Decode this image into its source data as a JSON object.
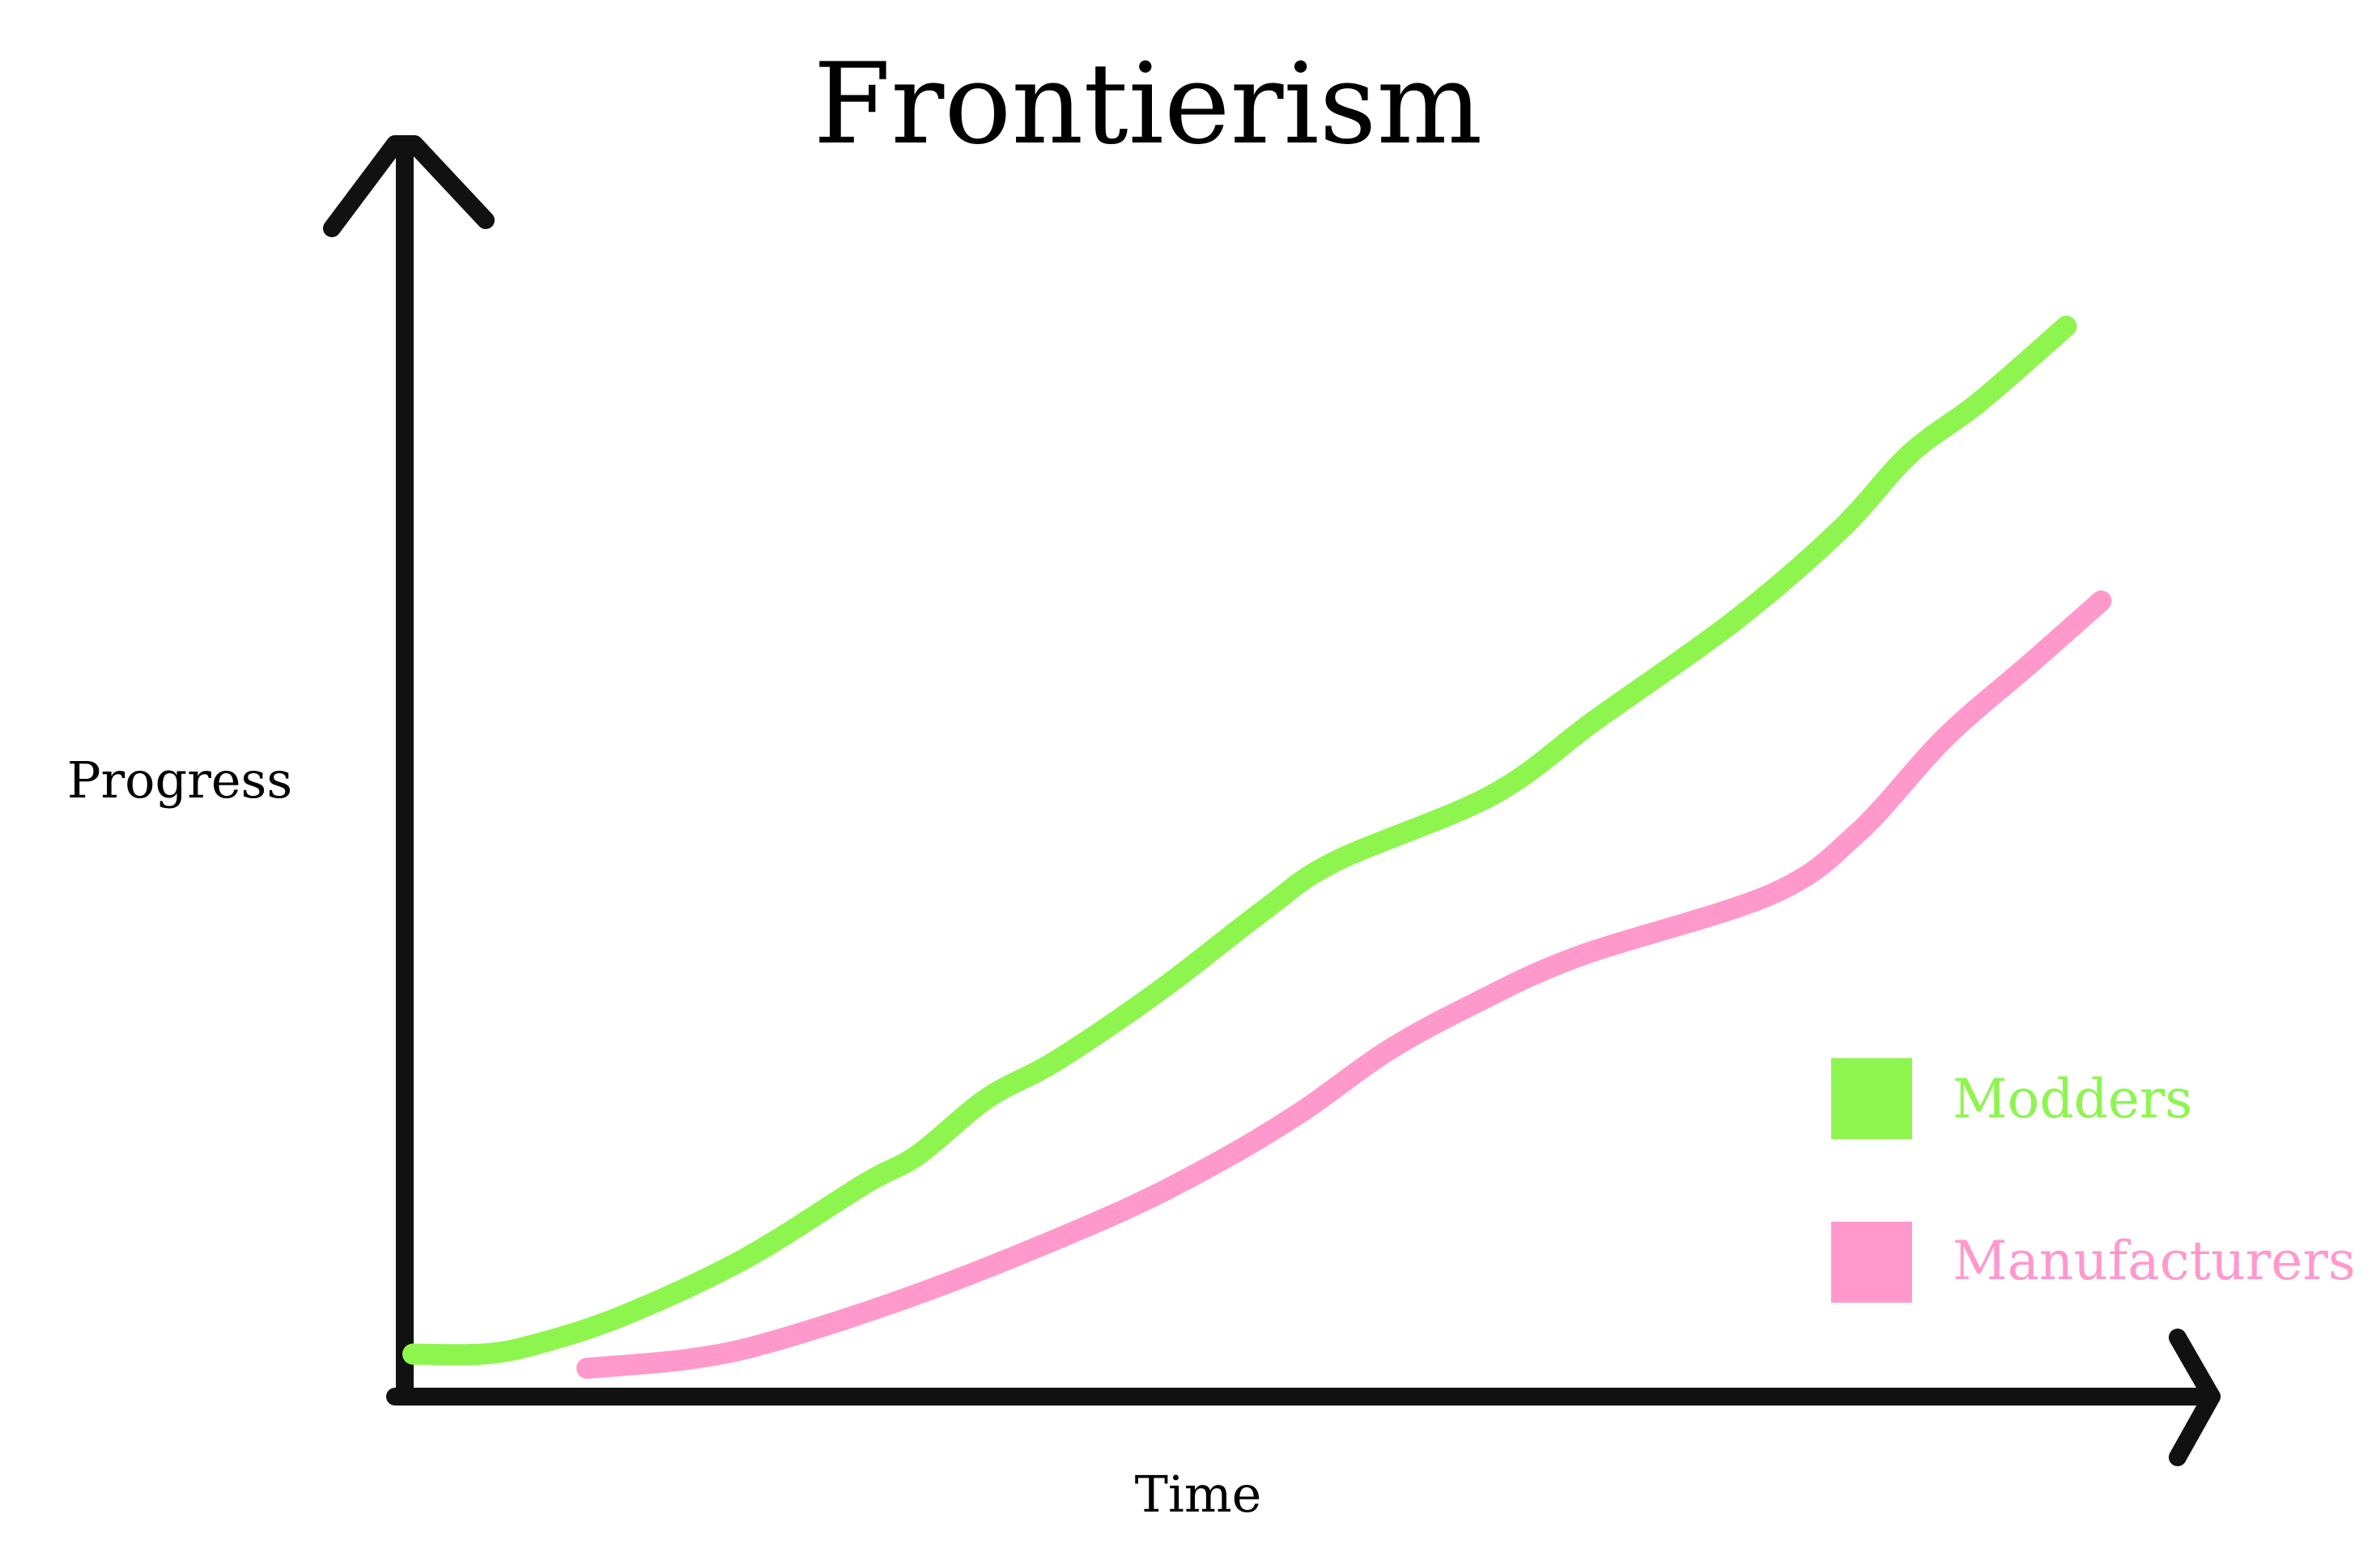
{
  "chart_data": {
    "type": "line",
    "title": "Frontierism",
    "xlabel": "Time",
    "ylabel": "Progress",
    "xlim": [
      0,
      100
    ],
    "ylim": [
      0,
      100
    ],
    "grid": false,
    "ticks": false,
    "legend_position": "bottom-right",
    "series": [
      {
        "name": "Modders",
        "color": "#8ef54f",
        "x": [
          0,
          4,
          7,
          12,
          19,
          26,
          29,
          33,
          37,
          43,
          49,
          53,
          62,
          68,
          76,
          82,
          86,
          90,
          95
        ],
        "y": [
          1.5,
          1.5,
          2.5,
          5.5,
          11.5,
          19.5,
          22.5,
          28.5,
          32.5,
          40.0,
          48.5,
          53.5,
          60.5,
          68.5,
          79.0,
          88.5,
          96.5,
          102.0,
          110.0
        ]
      },
      {
        "name": "Manufacturers",
        "color": "#ff99cc",
        "x": [
          10,
          16,
          21,
          30,
          40,
          46,
          51,
          56,
          61,
          67,
          78,
          83,
          88,
          93,
          97
        ],
        "y": [
          0.0,
          1.0,
          3.0,
          8.5,
          16.0,
          21.5,
          27.0,
          33.5,
          38.5,
          43.5,
          50.0,
          56.5,
          66.5,
          74.5,
          81.0
        ]
      }
    ]
  }
}
